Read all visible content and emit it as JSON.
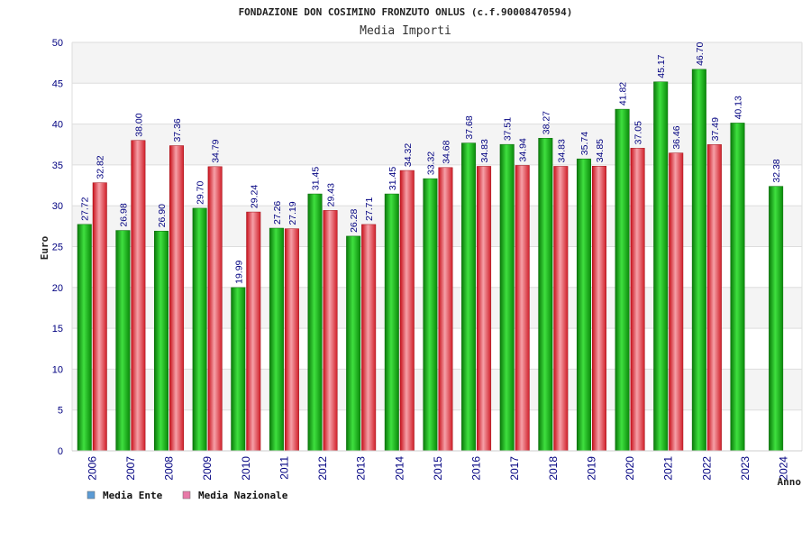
{
  "chart_data": {
    "type": "bar",
    "title": "FONDAZIONE DON COSIMINO FRONZUTO ONLUS (c.f.90008470594)",
    "subtitle": "Media Importi",
    "xlabel": "Anno",
    "ylabel": "Euro",
    "ylim": [
      0,
      50
    ],
    "yticks": [
      0,
      5,
      10,
      15,
      20,
      25,
      30,
      35,
      40,
      45,
      50
    ],
    "grid": true,
    "legend_position": "bottom-left",
    "categories": [
      "2006",
      "2007",
      "2008",
      "2009",
      "2010",
      "2011",
      "2012",
      "2013",
      "2014",
      "2015",
      "2016",
      "2017",
      "2018",
      "2019",
      "2020",
      "2021",
      "2022",
      "2023",
      "2024"
    ],
    "series": [
      {
        "name": "Media Ente",
        "legend_color": "#5b9bd5",
        "bar_color": "#1fb61f",
        "values": [
          27.72,
          26.98,
          26.9,
          29.7,
          19.99,
          27.26,
          31.45,
          26.28,
          31.45,
          33.32,
          37.68,
          37.51,
          38.27,
          35.74,
          41.82,
          45.17,
          46.7,
          40.13,
          32.38
        ],
        "labels": [
          "27.72",
          "26.98",
          "26.90",
          "29.70",
          "19.99",
          "27.26",
          "31.45",
          "26.28",
          "31.45",
          "33.32",
          "37.68",
          "37.51",
          "38.27",
          "35.74",
          "41.82",
          "45.17",
          "46.70",
          "40.13",
          "32.38"
        ]
      },
      {
        "name": "Media Nazionale",
        "legend_color": "#e87aa8",
        "bar_color": "#e8303a",
        "values": [
          32.82,
          38.0,
          37.36,
          34.79,
          29.24,
          27.19,
          29.43,
          27.71,
          34.32,
          34.68,
          34.83,
          34.94,
          34.83,
          34.85,
          37.05,
          36.46,
          37.49,
          null,
          null
        ],
        "labels": [
          "32.82",
          "38.00",
          "37.36",
          "34.79",
          "29.24",
          "27.19",
          "29.43",
          "27.71",
          "34.32",
          "34.68",
          "34.83",
          "34.94",
          "34.83",
          "34.85",
          "37.05",
          "36.46",
          "37.49",
          null,
          null
        ]
      }
    ]
  }
}
